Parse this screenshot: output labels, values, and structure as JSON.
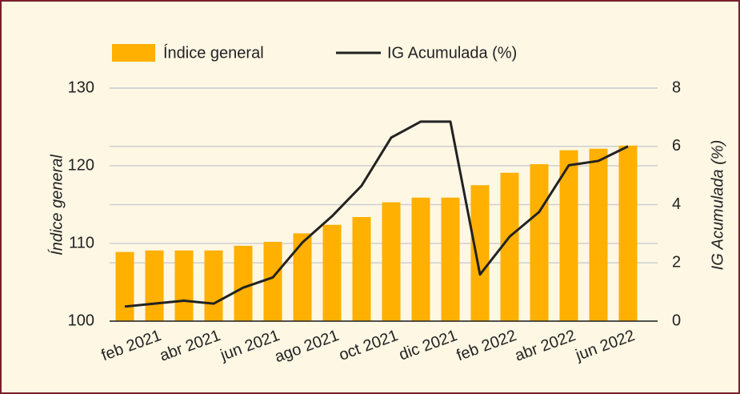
{
  "chart_data": {
    "type": "bar-line",
    "categories": [
      null,
      "feb 2021",
      null,
      "abr 2021",
      null,
      "jun 2021",
      null,
      "ago 2021",
      null,
      "oct 2021",
      null,
      "dic 2021",
      null,
      "feb 2022",
      null,
      "abr 2022",
      null,
      "jun 2022"
    ],
    "series": [
      {
        "name": "Índice general",
        "type": "bar",
        "color": "#ffb000",
        "axis": "y",
        "values": [
          108.9,
          109.1,
          109.1,
          109.1,
          109.7,
          110.2,
          111.3,
          112.4,
          113.4,
          115.3,
          115.9,
          115.9,
          117.5,
          119.1,
          120.2,
          122.0,
          122.2,
          122.6
        ]
      },
      {
        "name": "IG Acumulada (%)",
        "type": "line",
        "color": "#222222",
        "axis": "y2",
        "values": [
          0.5,
          0.6,
          0.7,
          0.6,
          1.15,
          1.5,
          2.7,
          3.6,
          4.65,
          6.3,
          6.85,
          6.85,
          1.6,
          2.9,
          3.75,
          5.35,
          5.5,
          6.0
        ]
      }
    ],
    "y_label": "Índice general",
    "y2_label": "IG Acumulada (%)",
    "ylim": [
      100,
      130
    ],
    "yticks": [
      100,
      110,
      120,
      130
    ],
    "y2lim": [
      0,
      8
    ],
    "y2ticks": [
      0,
      2,
      4,
      6,
      8
    ],
    "grid": true,
    "legend": "top"
  }
}
